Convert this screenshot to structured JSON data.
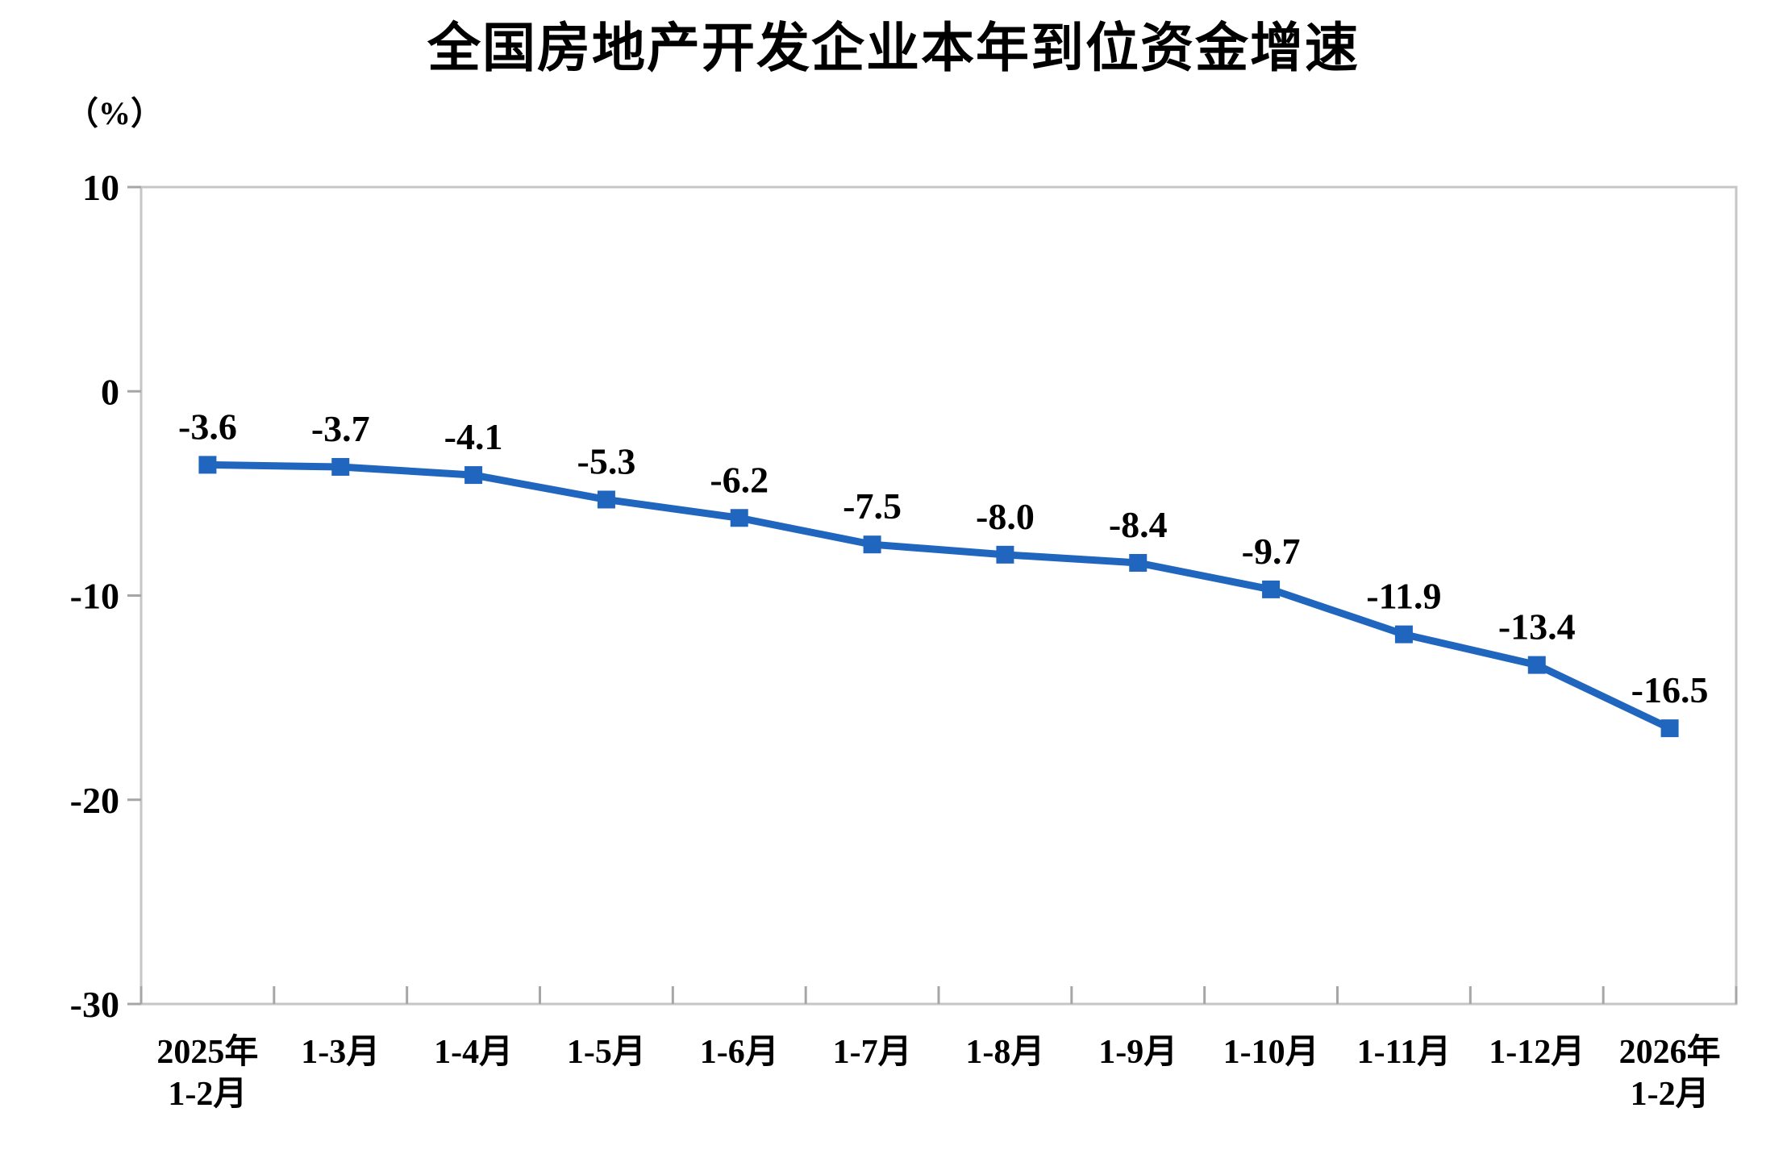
{
  "chart_data": {
    "type": "line",
    "title": "全国房地产开发企业本年到位资金增速",
    "unit_label": "（%）",
    "categories": [
      "2025年\n1-2月",
      "1-3月",
      "1-4月",
      "1-5月",
      "1-6月",
      "1-7月",
      "1-8月",
      "1-9月",
      "1-10月",
      "1-11月",
      "1-12月",
      "2026年\n1-2月"
    ],
    "values": [
      -3.6,
      -3.7,
      -4.1,
      -5.3,
      -6.2,
      -7.5,
      -8.0,
      -8.4,
      -9.7,
      -11.9,
      -13.4,
      -16.5
    ],
    "data_labels": [
      "-3.6",
      "-3.7",
      "-4.1",
      "-5.3",
      "-6.2",
      "-7.5",
      "-8.0",
      "-8.4",
      "-9.7",
      "-11.9",
      "-13.4",
      "-16.5"
    ],
    "xlabel": "",
    "ylabel": "（%）",
    "ylim": [
      -30,
      10
    ],
    "y_ticks": [
      10,
      0,
      -10,
      -20,
      -30
    ],
    "gridlines": false,
    "legend": "none",
    "marker": "square",
    "colors": {
      "line": "#2166BE",
      "marker": "#2166BE",
      "border": "#C6C6C6",
      "tick": "#A6A6A6",
      "text": "#000000",
      "background": "#FFFFFF"
    }
  }
}
